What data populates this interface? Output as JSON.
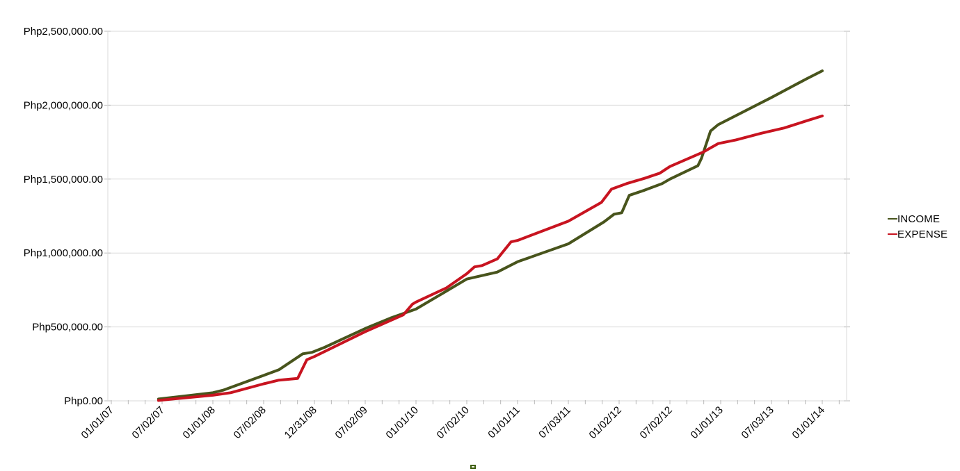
{
  "chart_data": {
    "type": "line",
    "title": "",
    "xlabel": "",
    "ylabel": "",
    "currency_prefix": "Php",
    "grid": true,
    "legend_position": "right",
    "ylim": [
      0,
      2500000
    ],
    "y_tick_labels": [
      "Php0.00",
      "Php500,000.00",
      "Php1,000,000.00",
      "Php1,500,000.00",
      "Php2,000,000.00",
      "Php2,500,000.00"
    ],
    "x_tick_labels": [
      "01/01/07",
      "07/02/07",
      "01/01/08",
      "07/02/08",
      "12/31/08",
      "07/02/09",
      "01/01/10",
      "07/02/10",
      "01/01/11",
      "07/03/11",
      "01/02/12",
      "07/02/12",
      "01/01/13",
      "07/03/13",
      "01/01/14"
    ],
    "minor_ticks_per_interval": 3,
    "series": [
      {
        "name": "INCOME",
        "color": "#48541c",
        "points": [
          [
            0.93,
            12000
          ],
          [
            2.0,
            55000
          ],
          [
            2.2,
            72000
          ],
          [
            3.0,
            172000
          ],
          [
            3.3,
            210000
          ],
          [
            3.77,
            318000
          ],
          [
            3.95,
            328000
          ],
          [
            4.2,
            362000
          ],
          [
            5.0,
            489000
          ],
          [
            5.5,
            560000
          ],
          [
            6.0,
            621000
          ],
          [
            7.0,
            824000
          ],
          [
            7.6,
            871000
          ],
          [
            8.0,
            941000
          ],
          [
            9.0,
            1062000
          ],
          [
            9.7,
            1210000
          ],
          [
            9.9,
            1262000
          ],
          [
            10.05,
            1272000
          ],
          [
            10.2,
            1390000
          ],
          [
            10.5,
            1425000
          ],
          [
            10.85,
            1470000
          ],
          [
            11.0,
            1500000
          ],
          [
            11.55,
            1590000
          ],
          [
            11.62,
            1640000
          ],
          [
            11.8,
            1825000
          ],
          [
            11.95,
            1868000
          ],
          [
            13.0,
            2052000
          ],
          [
            13.7,
            2180000
          ],
          [
            14.0,
            2232000
          ]
        ]
      },
      {
        "name": "EXPENSE",
        "color": "#c81420",
        "points": [
          [
            0.93,
            3000
          ],
          [
            2.0,
            38000
          ],
          [
            2.35,
            55000
          ],
          [
            3.0,
            115000
          ],
          [
            3.3,
            140000
          ],
          [
            3.67,
            152000
          ],
          [
            3.85,
            278000
          ],
          [
            4.0,
            300000
          ],
          [
            5.0,
            468000
          ],
          [
            5.75,
            582000
          ],
          [
            5.93,
            654000
          ],
          [
            6.0,
            668000
          ],
          [
            6.6,
            764000
          ],
          [
            7.0,
            860000
          ],
          [
            7.15,
            906000
          ],
          [
            7.3,
            915000
          ],
          [
            7.6,
            960000
          ],
          [
            7.87,
            1075000
          ],
          [
            8.0,
            1085000
          ],
          [
            9.0,
            1215000
          ],
          [
            9.65,
            1342000
          ],
          [
            9.85,
            1432000
          ],
          [
            10.15,
            1470000
          ],
          [
            10.5,
            1505000
          ],
          [
            10.8,
            1540000
          ],
          [
            11.0,
            1585000
          ],
          [
            11.65,
            1682000
          ],
          [
            11.95,
            1740000
          ],
          [
            12.3,
            1765000
          ],
          [
            12.8,
            1810000
          ],
          [
            13.25,
            1846000
          ],
          [
            13.7,
            1895000
          ],
          [
            14.0,
            1927000
          ]
        ]
      }
    ]
  },
  "legend": {
    "items": [
      "INCOME",
      "EXPENSE"
    ]
  },
  "decorations": {
    "gridline_color": "#d9d9d9",
    "tick_color": "#b9b9b9",
    "stray_mark_color": "#3f5e10"
  }
}
